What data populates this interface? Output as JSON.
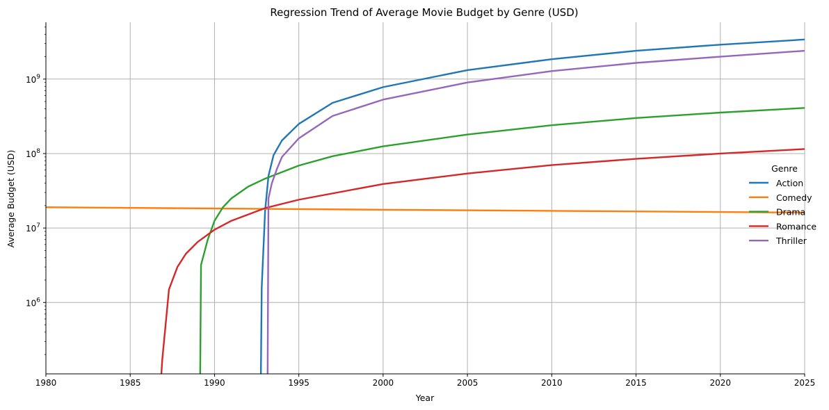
{
  "chart_data": {
    "type": "line",
    "title": "Regression Trend of Average Movie Budget by Genre (USD)",
    "xlabel": "Year",
    "ylabel": "Average Budget (USD)",
    "xlim": [
      1980,
      2025
    ],
    "ylim": [
      110000,
      5800000000
    ],
    "yscale": "log",
    "grid": true,
    "x_ticks": [
      1980,
      1985,
      1990,
      1995,
      2000,
      2005,
      2010,
      2015,
      2020,
      2025
    ],
    "x_tick_labels": [
      "1980",
      "1985",
      "1990",
      "1995",
      "2000",
      "2005",
      "2010",
      "2015",
      "2020",
      "2025"
    ],
    "y_ticks": [
      1000000,
      10000000,
      100000000,
      1000000000
    ],
    "y_tick_labels": [
      {
        "base": "10",
        "exp": "6"
      },
      {
        "base": "10",
        "exp": "7"
      },
      {
        "base": "10",
        "exp": "8"
      },
      {
        "base": "10",
        "exp": "9"
      }
    ],
    "legend": {
      "title": "Genre",
      "placement": "right"
    },
    "series": [
      {
        "name": "Action",
        "color": "#1f77b4",
        "x": [
          1992.75,
          1992.8,
          1993.0,
          1993.2,
          1993.5,
          1994.0,
          1995.0,
          1997.0,
          2000.0,
          2005.0,
          2010.0,
          2015.0,
          2020.0,
          2025.0
        ],
        "y": [
          110000,
          1600000,
          17000000,
          50000000,
          95000000,
          150000000,
          250000000,
          480000000,
          780000000,
          1320000000,
          1850000000,
          2400000000,
          2900000000,
          3400000000
        ]
      },
      {
        "name": "Comedy",
        "color": "#ff7f0e",
        "x": [
          1980,
          1990,
          2000,
          2010,
          2020,
          2025
        ],
        "y": [
          19000000,
          18300000,
          17600000,
          17000000,
          16400000,
          16100000
        ]
      },
      {
        "name": "Drama",
        "color": "#2ca02c",
        "x": [
          1989.15,
          1989.2,
          1989.6,
          1990.0,
          1990.5,
          1991.0,
          1992.0,
          1993.0,
          1995.0,
          1997.0,
          2000.0,
          2005.0,
          2010.0,
          2015.0,
          2020.0,
          2025.0
        ],
        "y": [
          110000,
          3200000,
          7000000,
          12500000,
          19000000,
          25000000,
          36000000,
          46000000,
          69000000,
          92000000,
          125000000,
          180000000,
          240000000,
          300000000,
          355000000,
          410000000
        ]
      },
      {
        "name": "Romance",
        "color": "#d62728",
        "x": [
          1986.85,
          1986.9,
          1987.3,
          1987.8,
          1988.3,
          1989.0,
          1990.0,
          1991.0,
          1993.0,
          1995.0,
          2000.0,
          2005.0,
          2010.0,
          2015.0,
          2020.0,
          2025.0
        ],
        "y": [
          110000,
          170000,
          1500000,
          3000000,
          4500000,
          6500000,
          9500000,
          12500000,
          18500000,
          24000000,
          39000000,
          54000000,
          70000000,
          85000000,
          100000000,
          115000000
        ]
      },
      {
        "name": "Thriller",
        "color": "#9467bd",
        "x": [
          1993.15,
          1993.2,
          1993.4,
          1993.7,
          1994.0,
          1995.0,
          1997.0,
          2000.0,
          2005.0,
          2010.0,
          2015.0,
          2020.0,
          2025.0
        ],
        "y": [
          110000,
          25000000,
          40000000,
          62000000,
          90000000,
          160000000,
          320000000,
          530000000,
          900000000,
          1280000000,
          1650000000,
          2000000000,
          2400000000
        ]
      }
    ]
  }
}
